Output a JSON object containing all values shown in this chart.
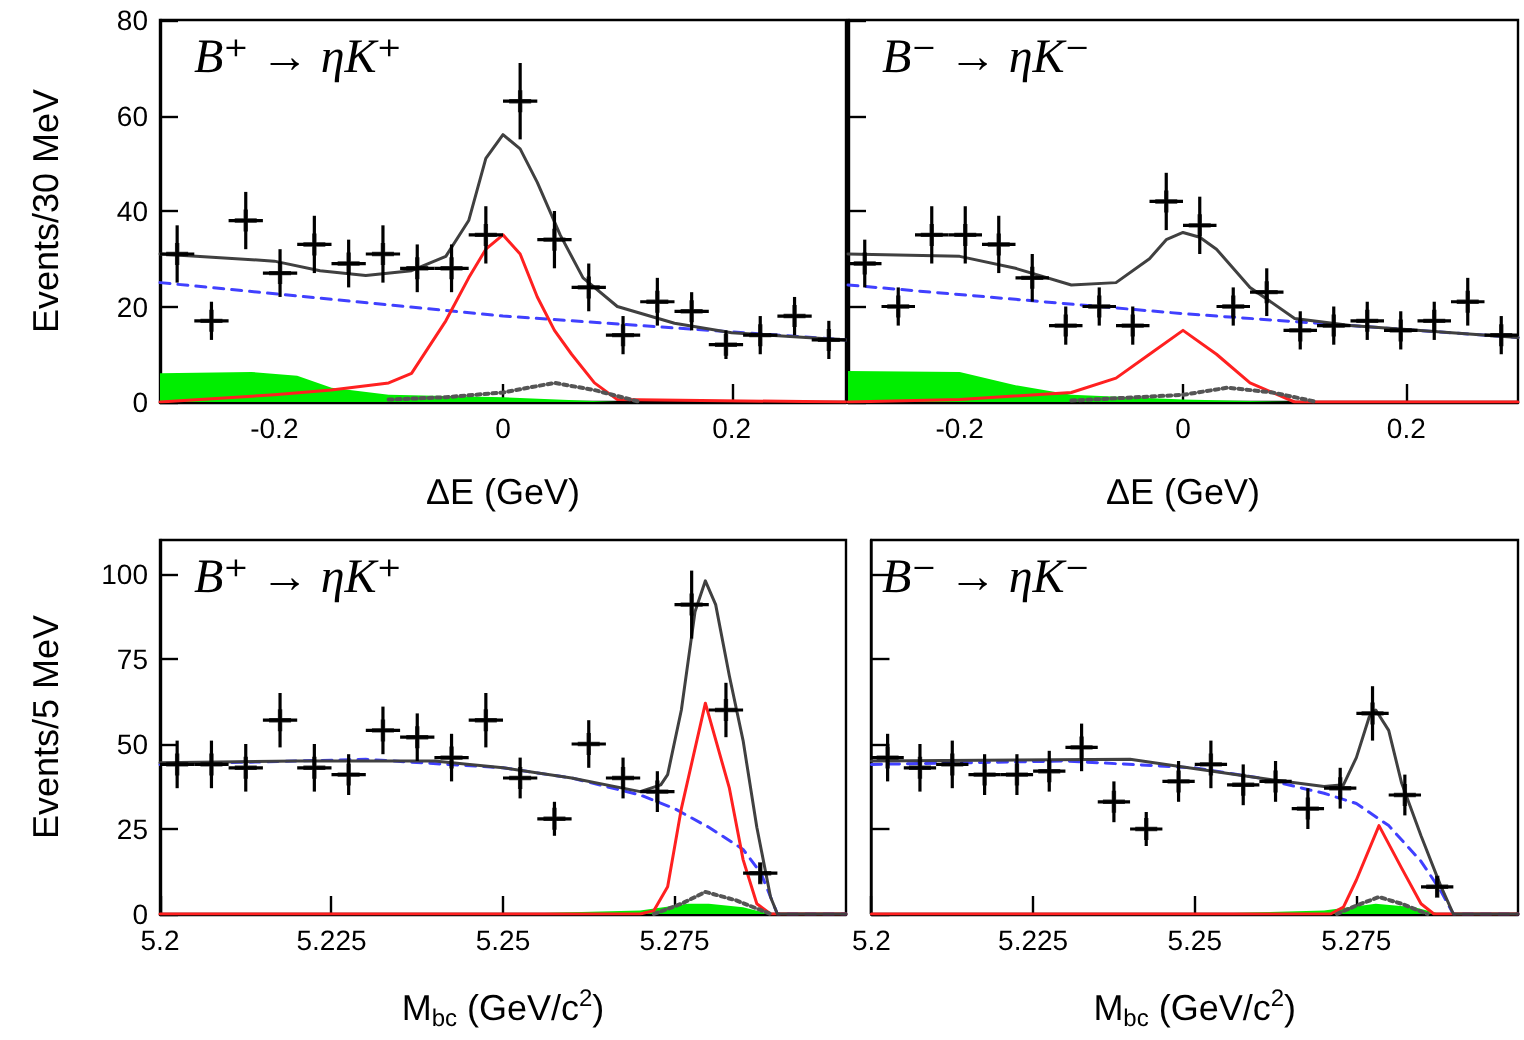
{
  "chart_data": [
    {
      "type": "line",
      "title": "B⁺ → ηK⁺",
      "xlabel": "ΔE (GeV)",
      "ylabel": "Events/30 MeV",
      "xlim": [
        -0.3,
        0.3
      ],
      "xticks": [
        -0.2,
        0,
        0.2
      ],
      "ylim": [
        0,
        80
      ],
      "yticks": [
        0,
        20,
        40,
        60,
        80
      ],
      "series": [
        {
          "type": "area",
          "color": "#00ee00",
          "x": [
            -0.3,
            -0.22,
            -0.18,
            -0.15,
            -0.1,
            0,
            0.1,
            0.3
          ],
          "values": [
            6,
            6.3,
            5.5,
            3,
            1.5,
            1,
            0,
            0
          ]
        },
        {
          "color": "#4040ff",
          "line_style": "dashed",
          "x": [
            -0.3,
            -0.15,
            0,
            0.15,
            0.3
          ],
          "values": [
            25,
            21.5,
            18,
            15.5,
            13
          ]
        },
        {
          "color": "#555555",
          "line_style": "dotted",
          "x": [
            -0.1,
            -0.05,
            0,
            0.045,
            0.08,
            0.12
          ],
          "values": [
            0.5,
            1,
            2,
            4,
            2.5,
            0
          ]
        },
        {
          "color": "#ff2020",
          "line_style": "solid",
          "x": [
            -0.3,
            -0.2,
            -0.15,
            -0.1,
            -0.08,
            -0.05,
            -0.03,
            -0.015,
            0,
            0.015,
            0.03,
            0.045,
            0.06,
            0.08,
            0.1,
            0.3
          ],
          "values": [
            0,
            1.5,
            2.5,
            4,
            6,
            17,
            26,
            32,
            35,
            31,
            22,
            15,
            10,
            4,
            0.5,
            0
          ]
        },
        {
          "color": "#404040",
          "line_style": "solid",
          "x": [
            -0.3,
            -0.2,
            -0.16,
            -0.12,
            -0.08,
            -0.05,
            -0.03,
            -0.015,
            0,
            0.015,
            0.03,
            0.05,
            0.07,
            0.1,
            0.15,
            0.2,
            0.3
          ],
          "values": [
            31,
            29.5,
            27.5,
            26.5,
            27.5,
            30.5,
            38,
            51,
            56,
            53,
            46,
            35,
            26,
            20,
            16.5,
            14.5,
            13
          ]
        },
        {
          "type": "scatter",
          "marker": "cross",
          "color": "#000000",
          "x": [
            -0.285,
            -0.255,
            -0.225,
            -0.195,
            -0.165,
            -0.135,
            -0.105,
            -0.075,
            -0.045,
            -0.015,
            0.015,
            0.045,
            0.075,
            0.105,
            0.135,
            0.165,
            0.195,
            0.225,
            0.255,
            0.285
          ],
          "values": [
            31,
            17,
            38,
            27,
            33,
            29,
            31,
            28,
            28,
            35,
            63,
            34,
            24,
            14,
            21,
            19,
            12,
            14,
            18,
            13
          ],
          "errors": [
            6,
            4,
            6,
            5,
            6,
            5,
            6,
            5,
            5,
            6,
            8,
            6,
            5,
            4,
            5,
            4,
            3,
            4,
            4,
            4
          ],
          "xerrors": [
            0.015,
            0.015,
            0.015,
            0.015,
            0.015,
            0.015,
            0.015,
            0.015,
            0.015,
            0.015,
            0.015,
            0.015,
            0.015,
            0.015,
            0.015,
            0.015,
            0.015,
            0.015,
            0.015,
            0.015
          ]
        }
      ]
    },
    {
      "type": "line",
      "title": "B⁻ → ηK⁻",
      "xlabel": "ΔE (GeV)",
      "xlim": [
        -0.3,
        0.3
      ],
      "xticks": [
        -0.2,
        0,
        0.2
      ],
      "ylim": [
        0,
        80
      ],
      "yticks": [
        0,
        20,
        40,
        60,
        80
      ],
      "tick_labels": "x",
      "series": [
        {
          "type": "area",
          "color": "#00ee00",
          "x": [
            -0.3,
            -0.2,
            -0.15,
            -0.1,
            0,
            0.1,
            0.3
          ],
          "values": [
            6.5,
            6.3,
            3.5,
            1.5,
            0.5,
            0,
            0
          ]
        },
        {
          "color": "#4040ff",
          "line_style": "dashed",
          "x": [
            -0.3,
            -0.15,
            0,
            0.15,
            0.3
          ],
          "values": [
            24.5,
            21.5,
            18.5,
            16,
            13.5
          ]
        },
        {
          "color": "#555555",
          "line_style": "dotted",
          "x": [
            -0.1,
            0,
            0.04,
            0.08,
            0.12
          ],
          "values": [
            0.3,
            1.5,
            3,
            2,
            0
          ]
        },
        {
          "color": "#ff2020",
          "line_style": "solid",
          "x": [
            -0.3,
            -0.2,
            -0.1,
            -0.06,
            -0.03,
            0,
            0.03,
            0.06,
            0.1,
            0.3
          ],
          "values": [
            0,
            0.5,
            2,
            5,
            10,
            15,
            10,
            4,
            0,
            0
          ]
        },
        {
          "color": "#404040",
          "line_style": "solid",
          "x": [
            -0.3,
            -0.2,
            -0.15,
            -0.1,
            -0.06,
            -0.03,
            -0.015,
            0,
            0.015,
            0.03,
            0.06,
            0.1,
            0.15,
            0.3
          ],
          "values": [
            31,
            30.5,
            28,
            24.5,
            25,
            30,
            34,
            35.5,
            34.5,
            32,
            24,
            17.5,
            16,
            13.5
          ]
        },
        {
          "type": "scatter",
          "marker": "cross",
          "color": "#000000",
          "x": [
            -0.285,
            -0.255,
            -0.225,
            -0.195,
            -0.165,
            -0.135,
            -0.105,
            -0.075,
            -0.045,
            -0.015,
            0.015,
            0.045,
            0.075,
            0.105,
            0.135,
            0.165,
            0.195,
            0.225,
            0.255,
            0.285
          ],
          "values": [
            29,
            20,
            35,
            35,
            33,
            26,
            16,
            20,
            16,
            42,
            37,
            20,
            23,
            15,
            16,
            17,
            15,
            17,
            21,
            14
          ],
          "errors": [
            5,
            4,
            6,
            6,
            6,
            5,
            4,
            4,
            4,
            6,
            6,
            4,
            5,
            4,
            4,
            4,
            4,
            4,
            5,
            4
          ],
          "xerrors": [
            0.015,
            0.015,
            0.015,
            0.015,
            0.015,
            0.015,
            0.015,
            0.015,
            0.015,
            0.015,
            0.015,
            0.015,
            0.015,
            0.015,
            0.015,
            0.015,
            0.015,
            0.015,
            0.015,
            0.015
          ]
        }
      ]
    },
    {
      "type": "line",
      "title": "B⁺ → ηK⁺",
      "xlabel": "M$_{bc}$ (GeV/c$^{2}$)",
      "ylabel": "Events/5 MeV",
      "xlim": [
        5.2,
        5.3
      ],
      "xticks": [
        5.2,
        5.225,
        5.25,
        5.275
      ],
      "ylim": [
        0,
        110
      ],
      "yticks": [
        0,
        25,
        50,
        75,
        100
      ],
      "series": [
        {
          "type": "area",
          "color": "#00ee00",
          "x": [
            5.2,
            5.25,
            5.26,
            5.27,
            5.277,
            5.28,
            5.285,
            5.289,
            5.3
          ],
          "values": [
            0,
            0,
            0.5,
            1,
            3,
            3,
            2,
            0,
            0
          ]
        },
        {
          "color": "#4040ff",
          "line_style": "dashed",
          "x": [
            5.2,
            5.23,
            5.25,
            5.26,
            5.27,
            5.275,
            5.28,
            5.285,
            5.2876,
            5.29,
            5.3
          ],
          "values": [
            44,
            45.5,
            43,
            40,
            35,
            31,
            25.5,
            19,
            12,
            0,
            0
          ]
        },
        {
          "color": "#555555",
          "line_style": "dotted",
          "x": [
            5.272,
            5.276,
            5.2795,
            5.284,
            5.289
          ],
          "values": [
            0,
            3,
            6.5,
            4,
            0
          ]
        },
        {
          "color": "#ff2020",
          "line_style": "solid",
          "x": [
            5.2,
            5.27,
            5.272,
            5.274,
            5.276,
            5.2795,
            5.283,
            5.285,
            5.287,
            5.289,
            5.3
          ],
          "values": [
            0,
            0,
            1,
            8,
            31,
            62,
            37,
            16,
            3,
            0,
            0
          ]
        },
        {
          "color": "#404040",
          "line_style": "solid",
          "x": [
            5.2,
            5.22,
            5.24,
            5.25,
            5.26,
            5.27,
            5.273,
            5.274,
            5.276,
            5.278,
            5.2795,
            5.281,
            5.283,
            5.285,
            5.287,
            5.289,
            5.29,
            5.3
          ],
          "values": [
            44.5,
            45,
            45,
            43,
            40,
            36,
            38,
            41,
            60,
            89,
            98,
            91,
            70,
            51,
            25.5,
            5,
            0,
            0
          ]
        },
        {
          "type": "scatter",
          "color": "#000000",
          "x": [
            5.2025,
            5.2075,
            5.2125,
            5.2175,
            5.2225,
            5.2275,
            5.2325,
            5.2375,
            5.2425,
            5.2475,
            5.2525,
            5.2575,
            5.2625,
            5.2675,
            5.2725,
            5.2775,
            5.2825,
            5.2875
          ],
          "marker": "cross",
          "values": [
            44,
            44,
            43,
            57,
            43,
            41,
            54,
            52,
            46,
            57,
            40,
            28,
            50,
            40,
            36,
            91,
            60,
            12
          ],
          "errors": [
            7,
            7,
            7,
            8,
            7,
            6,
            7,
            7,
            7,
            8,
            6,
            5,
            7,
            6,
            6,
            10,
            8,
            3
          ],
          "xerrors": [
            0.0025,
            0.0025,
            0.0025,
            0.0025,
            0.0025,
            0.0025,
            0.0025,
            0.0025,
            0.0025,
            0.0025,
            0.0025,
            0.0025,
            0.0025,
            0.0025,
            0.0025,
            0.0025,
            0.0025,
            0.0025
          ]
        }
      ]
    },
    {
      "type": "line",
      "title": "B⁻ → ηK⁻",
      "xlabel": "M$_{bc}$ (GeV/c$^{2}$)",
      "xlim": [
        5.2,
        5.3
      ],
      "xticks": [
        5.2,
        5.225,
        5.25,
        5.275
      ],
      "ylim": [
        0,
        110
      ],
      "yticks": [
        0,
        25,
        50,
        75,
        100
      ],
      "tick_labels": "x",
      "series": [
        {
          "type": "area",
          "color": "#00ee00",
          "x": [
            5.2,
            5.25,
            5.27,
            5.278,
            5.284,
            5.288,
            5.3
          ],
          "values": [
            0,
            0,
            1,
            3,
            2,
            0,
            0
          ]
        },
        {
          "color": "#4040ff",
          "line_style": "dashed",
          "x": [
            5.2,
            5.23,
            5.25,
            5.26,
            5.27,
            5.275,
            5.28,
            5.285,
            5.288,
            5.29,
            5.3
          ],
          "values": [
            44,
            45,
            43,
            40,
            35.5,
            32.5,
            26,
            15.5,
            7,
            0,
            0
          ]
        },
        {
          "color": "#555555",
          "line_style": "dotted",
          "x": [
            5.272,
            5.275,
            5.2785,
            5.282,
            5.286
          ],
          "values": [
            0,
            2.5,
            5,
            3,
            0
          ]
        },
        {
          "color": "#ff2020",
          "line_style": "solid",
          "x": [
            5.2,
            5.271,
            5.273,
            5.275,
            5.2785,
            5.282,
            5.285,
            5.287,
            5.3
          ],
          "values": [
            0,
            0,
            2,
            10,
            26,
            13.5,
            3,
            0,
            0
          ]
        },
        {
          "color": "#404040",
          "line_style": "solid",
          "x": [
            5.2,
            5.24,
            5.26,
            5.27,
            5.273,
            5.275,
            5.277,
            5.278,
            5.28,
            5.282,
            5.285,
            5.288,
            5.29,
            5.3
          ],
          "values": [
            45,
            45.5,
            40,
            37.5,
            38,
            46,
            58,
            60,
            54,
            38.5,
            23,
            8.5,
            0,
            0
          ]
        },
        {
          "type": "scatter",
          "color": "#000000",
          "x": [
            5.2025,
            5.2075,
            5.2125,
            5.2175,
            5.2225,
            5.2275,
            5.2325,
            5.2375,
            5.2425,
            5.2475,
            5.2525,
            5.2575,
            5.2625,
            5.2675,
            5.2725,
            5.2775,
            5.2825,
            5.2875
          ],
          "marker": "cross",
          "values": [
            46,
            43,
            44,
            41,
            41,
            42,
            49,
            33,
            25,
            39,
            44,
            38,
            39,
            31,
            37,
            59,
            35,
            8
          ],
          "errors": [
            7,
            7,
            7,
            6,
            6,
            6,
            7,
            6,
            5,
            6,
            7,
            6,
            6,
            6,
            6,
            8,
            6,
            3
          ],
          "xerrors": [
            0.0025,
            0.0025,
            0.0025,
            0.0025,
            0.0025,
            0.0025,
            0.0025,
            0.0025,
            0.0025,
            0.0025,
            0.0025,
            0.0025,
            0.0025,
            0.0025,
            0.0025,
            0.0025,
            0.0025,
            0.0025
          ]
        }
      ]
    }
  ]
}
